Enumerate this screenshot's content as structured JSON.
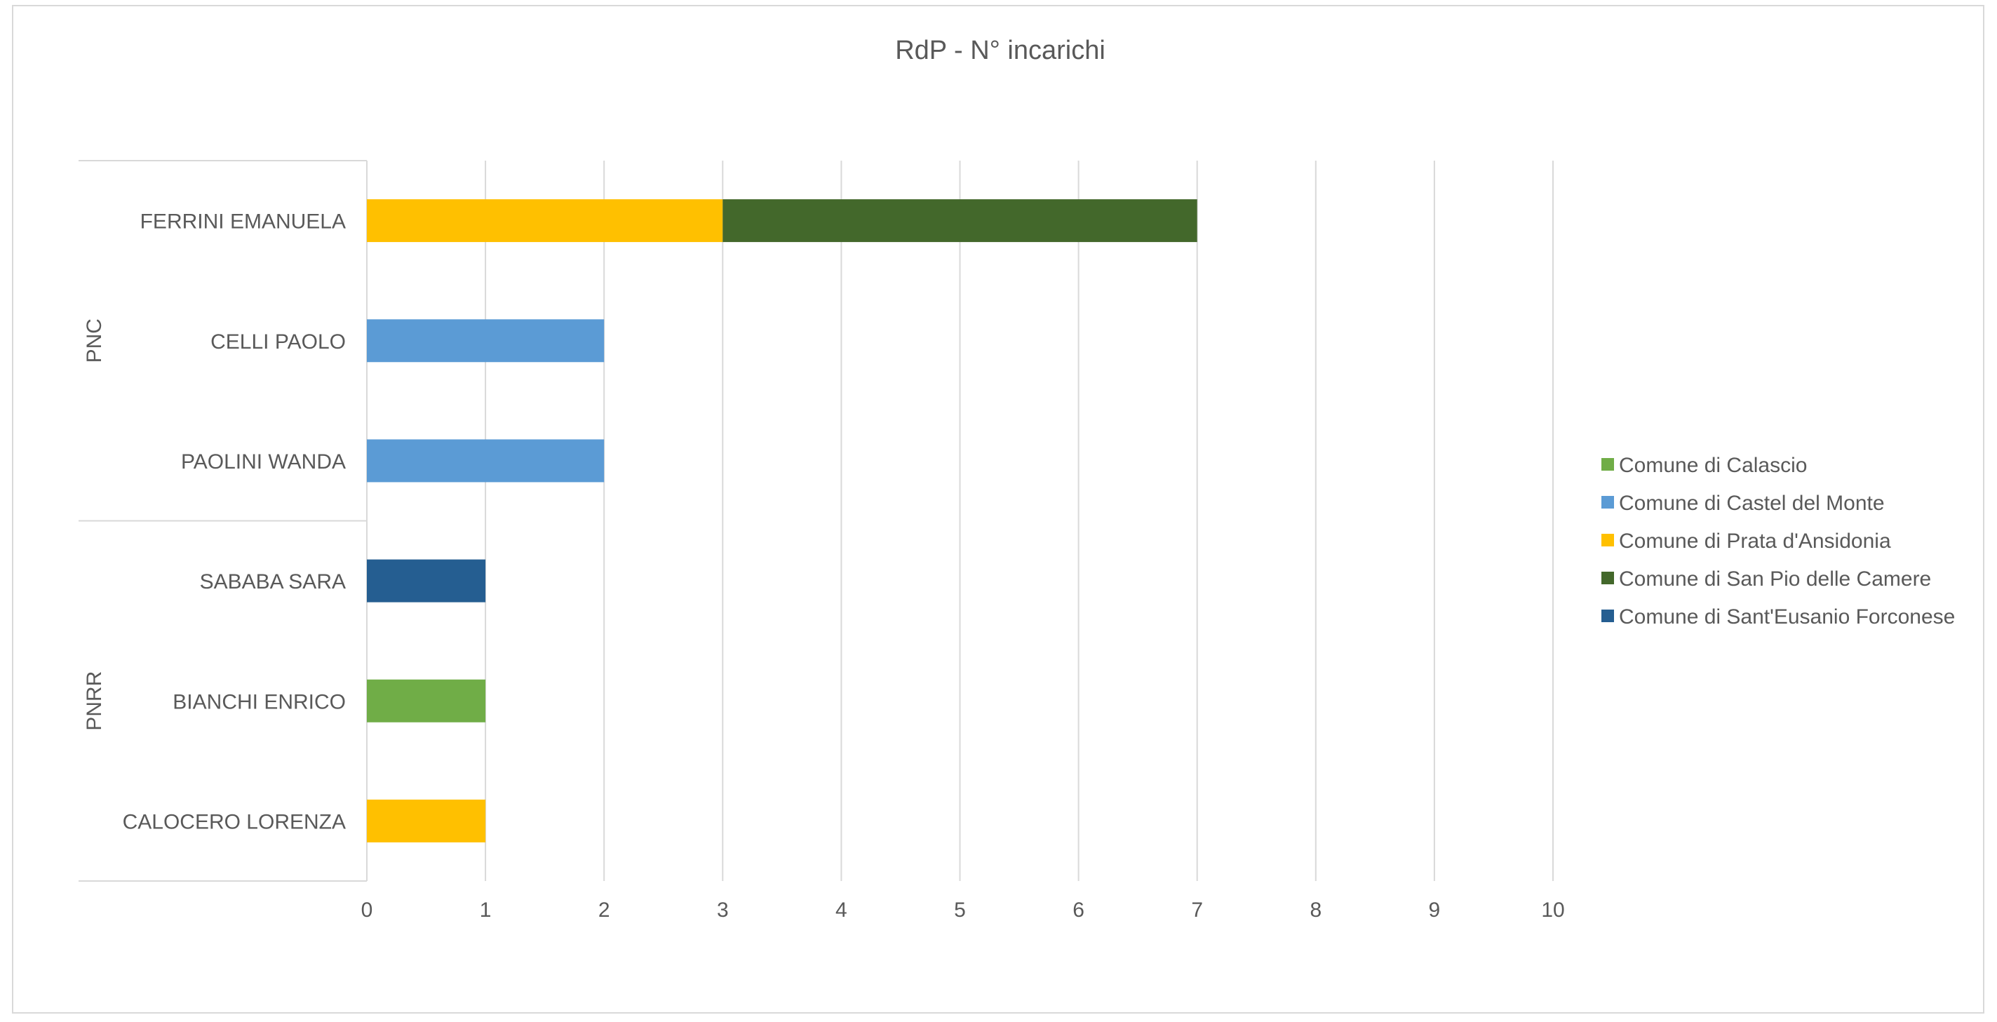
{
  "chart_data": {
    "type": "bar",
    "orientation": "horizontal",
    "stacked": true,
    "title": "RdP - N° incarichi",
    "xlim": [
      0,
      10
    ],
    "x_ticks": [
      "0",
      "1",
      "2",
      "3",
      "4",
      "5",
      "6",
      "7",
      "8",
      "9",
      "10"
    ],
    "grid": true,
    "legend_position": "right",
    "groups": [
      {
        "label": "PNC",
        "categories": [
          "FERRINI EMANUELA",
          "CELLI PAOLO",
          "PAOLINI WANDA"
        ]
      },
      {
        "label": "PNRR",
        "categories": [
          "SABABA SARA",
          "BIANCHI ENRICO",
          "CALOCERO LORENZA"
        ]
      }
    ],
    "series": [
      {
        "name": "Comune di Calascio",
        "color": "#70ad47",
        "values": [
          0,
          0,
          0,
          0,
          1,
          0
        ]
      },
      {
        "name": "Comune di Castel del Monte",
        "color": "#5b9bd5",
        "values": [
          0,
          2,
          2,
          0,
          0,
          0
        ]
      },
      {
        "name": "Comune di Prata d'Ansidonia",
        "color": "#ffc000",
        "values": [
          3,
          0,
          0,
          0,
          0,
          1
        ]
      },
      {
        "name": "Comune di San Pio delle Camere",
        "color": "#43682b",
        "values": [
          4,
          0,
          0,
          0,
          0,
          0
        ]
      },
      {
        "name": "Comune di Sant'Eusanio Forconese",
        "color": "#255e91",
        "values": [
          0,
          0,
          0,
          1,
          0,
          0
        ]
      }
    ]
  }
}
